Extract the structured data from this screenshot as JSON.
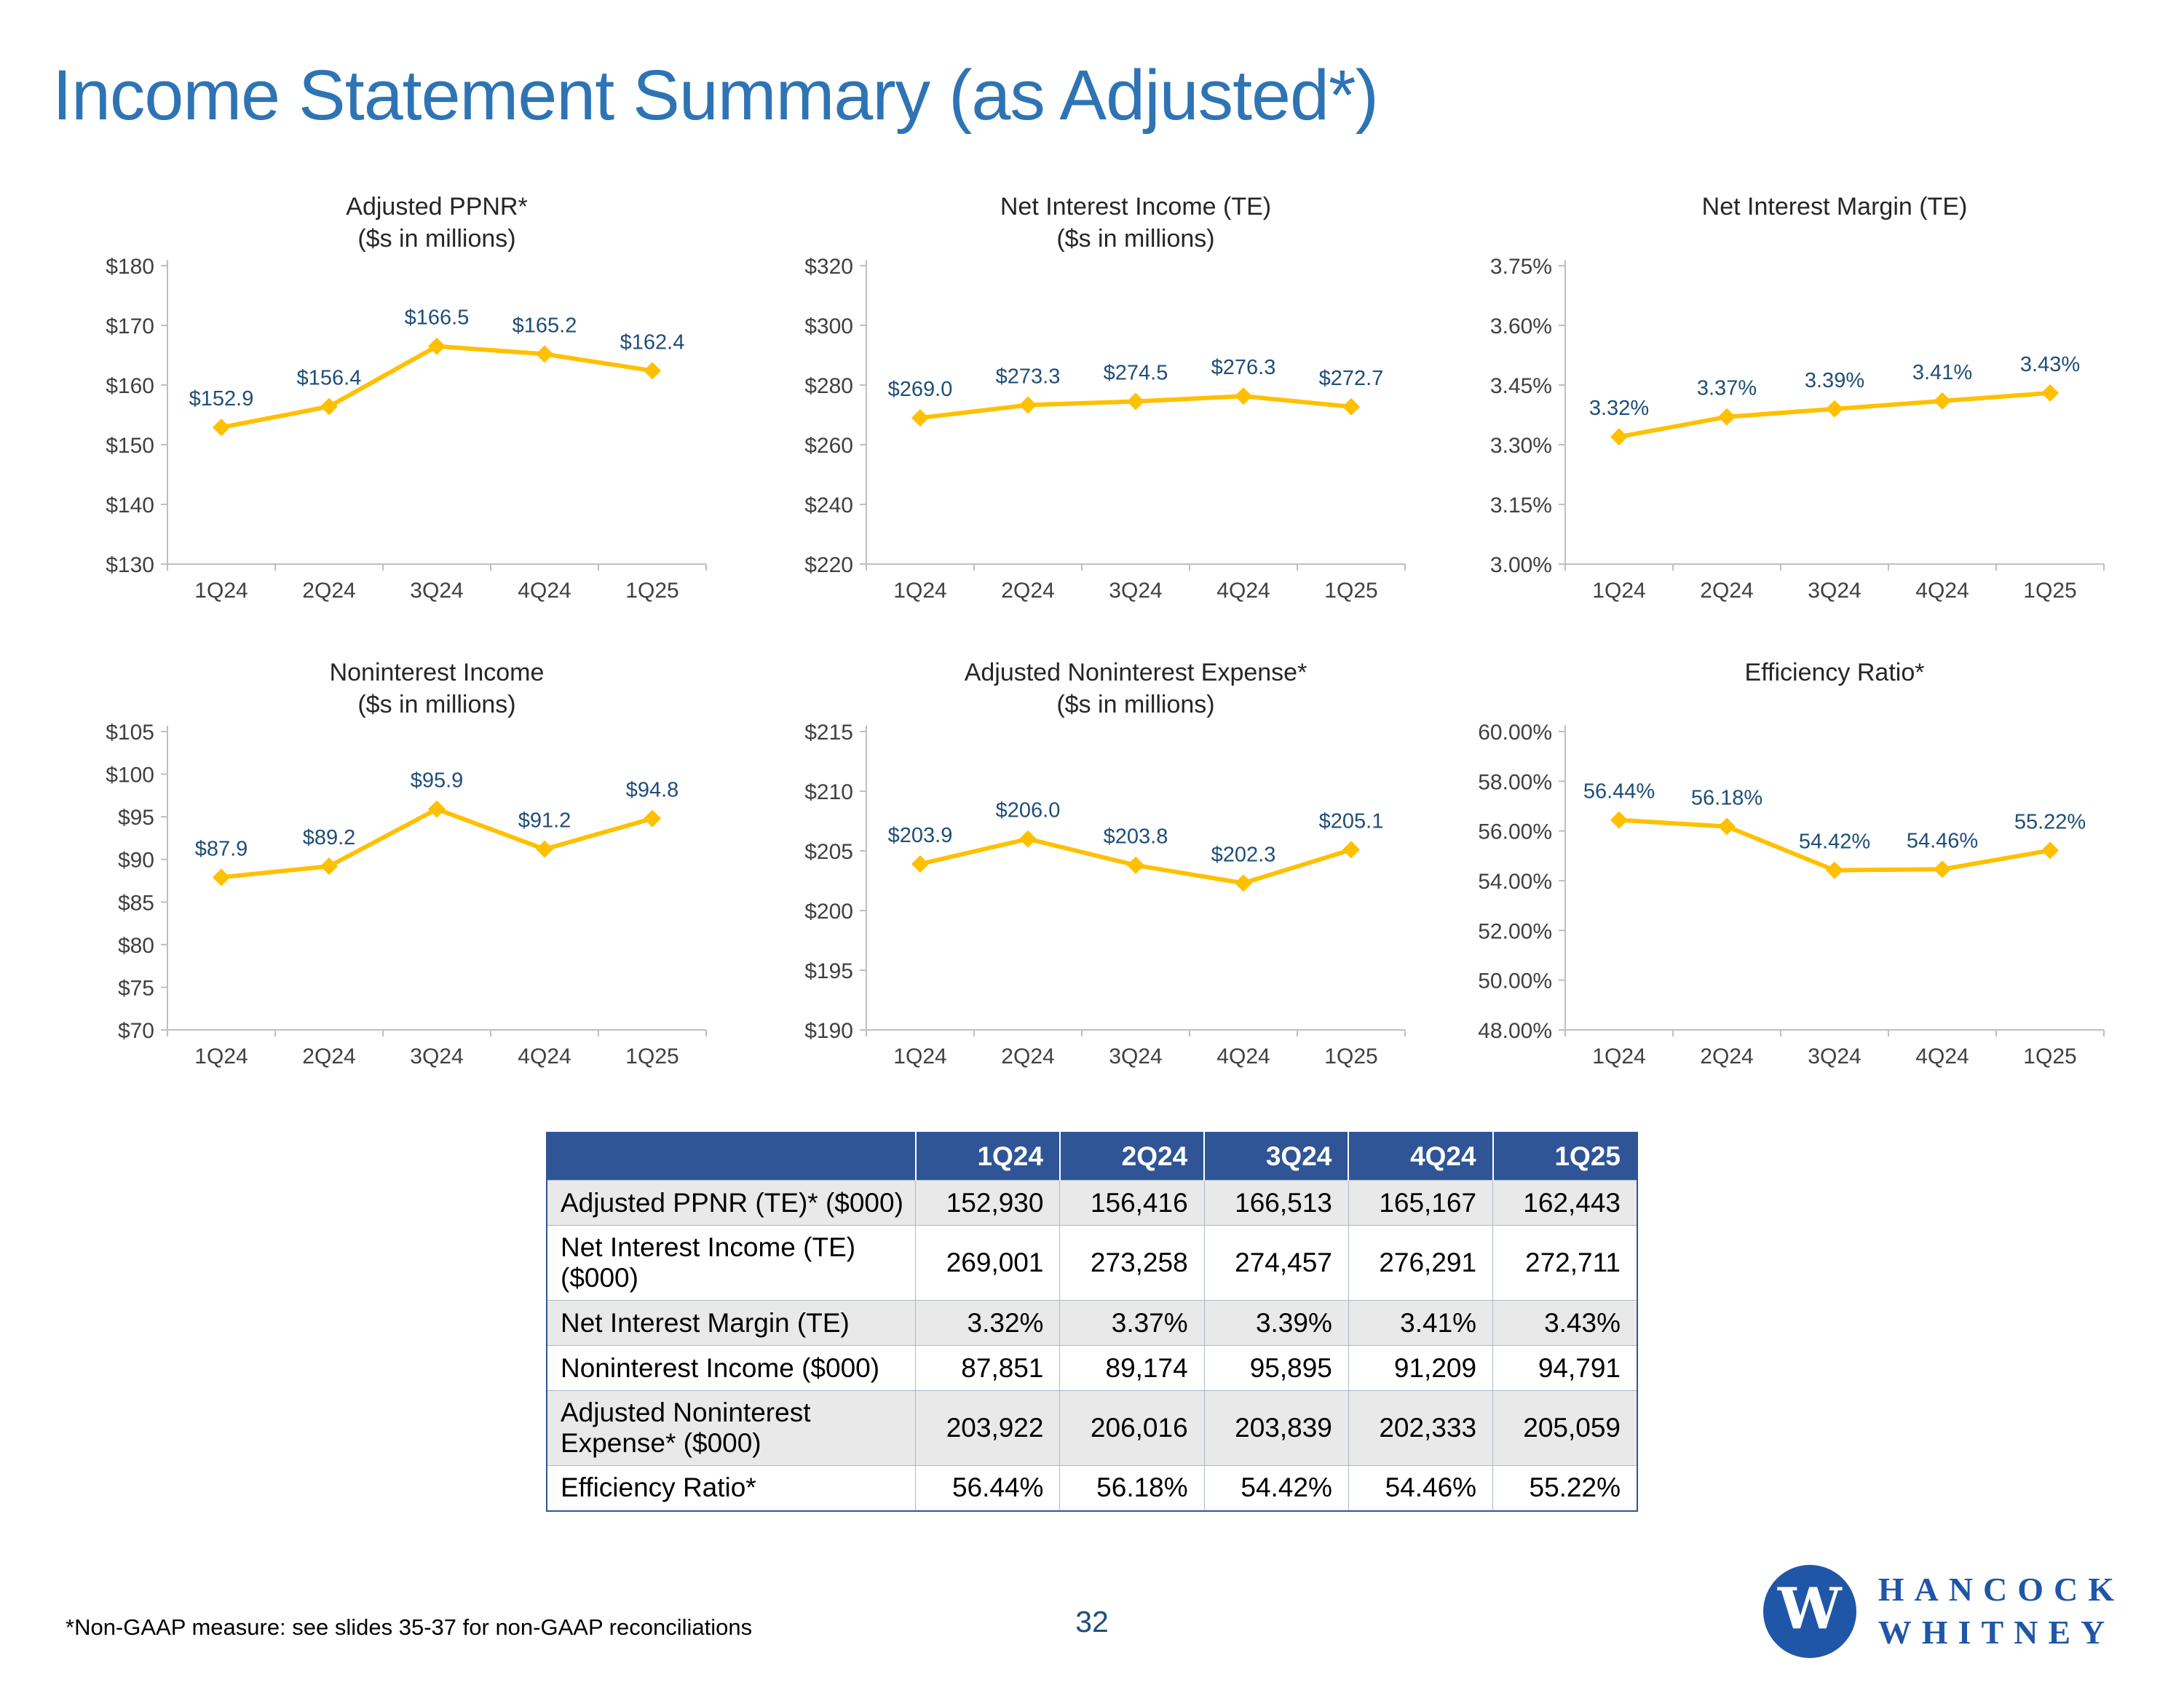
{
  "title": "Income Statement Summary (as Adjusted*)",
  "colors": {
    "line": "#FFC000",
    "point_label": "#1F4E79",
    "title_blue": "#2E74B5",
    "table_header_bg": "#2F5597",
    "axis_line": "#BFBFBF",
    "axis_text": "#404040",
    "chart_title_text": "#262626"
  },
  "chart_data": [
    {
      "type": "line",
      "title": "Adjusted PPNR*",
      "subtitle": "($s in millions)",
      "categories": [
        "1Q24",
        "2Q24",
        "3Q24",
        "4Q24",
        "1Q25"
      ],
      "values": [
        152.9,
        156.4,
        166.5,
        165.2,
        162.4
      ],
      "point_labels": [
        "$152.9",
        "$156.4",
        "$166.5",
        "$165.2",
        "$162.4"
      ],
      "ylim": [
        130,
        180
      ],
      "yticks": [
        {
          "v": 130,
          "label": "$130"
        },
        {
          "v": 140,
          "label": "$140"
        },
        {
          "v": 150,
          "label": "$150"
        },
        {
          "v": 160,
          "label": "$160"
        },
        {
          "v": 170,
          "label": "$170"
        },
        {
          "v": 180,
          "label": "$180"
        }
      ]
    },
    {
      "type": "line",
      "title": "Net Interest Income (TE)",
      "subtitle": "($s in millions)",
      "categories": [
        "1Q24",
        "2Q24",
        "3Q24",
        "4Q24",
        "1Q25"
      ],
      "values": [
        269.0,
        273.3,
        274.5,
        276.3,
        272.7
      ],
      "point_labels": [
        "$269.0",
        "$273.3",
        "$274.5",
        "$276.3",
        "$272.7"
      ],
      "ylim": [
        220,
        320
      ],
      "yticks": [
        {
          "v": 220,
          "label": "$220"
        },
        {
          "v": 240,
          "label": "$240"
        },
        {
          "v": 260,
          "label": "$260"
        },
        {
          "v": 280,
          "label": "$280"
        },
        {
          "v": 300,
          "label": "$300"
        },
        {
          "v": 320,
          "label": "$320"
        }
      ]
    },
    {
      "type": "line",
      "title": "Net Interest Margin (TE)",
      "subtitle": "",
      "categories": [
        "1Q24",
        "2Q24",
        "3Q24",
        "4Q24",
        "1Q25"
      ],
      "values": [
        3.32,
        3.37,
        3.39,
        3.41,
        3.43
      ],
      "point_labels": [
        "3.32%",
        "3.37%",
        "3.39%",
        "3.41%",
        "3.43%"
      ],
      "ylim": [
        3.0,
        3.75
      ],
      "yticks": [
        {
          "v": 3.0,
          "label": "3.00%"
        },
        {
          "v": 3.15,
          "label": "3.15%"
        },
        {
          "v": 3.3,
          "label": "3.30%"
        },
        {
          "v": 3.45,
          "label": "3.45%"
        },
        {
          "v": 3.6,
          "label": "3.60%"
        },
        {
          "v": 3.75,
          "label": "3.75%"
        }
      ]
    },
    {
      "type": "line",
      "title": "Noninterest Income",
      "subtitle": "($s in millions)",
      "categories": [
        "1Q24",
        "2Q24",
        "3Q24",
        "4Q24",
        "1Q25"
      ],
      "values": [
        87.9,
        89.2,
        95.9,
        91.2,
        94.8
      ],
      "point_labels": [
        "$87.9",
        "$89.2",
        "$95.9",
        "$91.2",
        "$94.8"
      ],
      "ylim": [
        70,
        105
      ],
      "yticks": [
        {
          "v": 70,
          "label": "$70"
        },
        {
          "v": 75,
          "label": "$75"
        },
        {
          "v": 80,
          "label": "$80"
        },
        {
          "v": 85,
          "label": "$85"
        },
        {
          "v": 90,
          "label": "$90"
        },
        {
          "v": 95,
          "label": "$95"
        },
        {
          "v": 100,
          "label": "$100"
        },
        {
          "v": 105,
          "label": "$105"
        }
      ]
    },
    {
      "type": "line",
      "title": "Adjusted Noninterest Expense*",
      "subtitle": "($s in millions)",
      "categories": [
        "1Q24",
        "2Q24",
        "3Q24",
        "4Q24",
        "1Q25"
      ],
      "values": [
        203.9,
        206.0,
        203.8,
        202.3,
        205.1
      ],
      "point_labels": [
        "$203.9",
        "$206.0",
        "$203.8",
        "$202.3",
        "$205.1"
      ],
      "ylim": [
        190,
        215
      ],
      "yticks": [
        {
          "v": 190,
          "label": "$190"
        },
        {
          "v": 195,
          "label": "$195"
        },
        {
          "v": 200,
          "label": "$200"
        },
        {
          "v": 205,
          "label": "$205"
        },
        {
          "v": 210,
          "label": "$210"
        },
        {
          "v": 215,
          "label": "$215"
        }
      ]
    },
    {
      "type": "line",
      "title": "Efficiency Ratio*",
      "subtitle": "",
      "categories": [
        "1Q24",
        "2Q24",
        "3Q24",
        "4Q24",
        "1Q25"
      ],
      "values": [
        56.44,
        56.18,
        54.42,
        54.46,
        55.22
      ],
      "point_labels": [
        "56.44%",
        "56.18%",
        "54.42%",
        "54.46%",
        "55.22%"
      ],
      "ylim": [
        48,
        60
      ],
      "yticks": [
        {
          "v": 48,
          "label": "48.00%"
        },
        {
          "v": 50,
          "label": "50.00%"
        },
        {
          "v": 52,
          "label": "52.00%"
        },
        {
          "v": 54,
          "label": "54.00%"
        },
        {
          "v": 56,
          "label": "56.00%"
        },
        {
          "v": 58,
          "label": "58.00%"
        },
        {
          "v": 60,
          "label": "60.00%"
        }
      ]
    }
  ],
  "table": {
    "header": [
      "",
      "1Q24",
      "2Q24",
      "3Q24",
      "4Q24",
      "1Q25"
    ],
    "rows": [
      {
        "label": "Adjusted PPNR (TE)* ($000)",
        "values": [
          "152,930",
          "156,416",
          "166,513",
          "165,167",
          "162,443"
        ]
      },
      {
        "label": "Net Interest Income (TE) ($000)",
        "values": [
          "269,001",
          "273,258",
          "274,457",
          "276,291",
          "272,711"
        ]
      },
      {
        "label": "Net Interest Margin (TE)",
        "values": [
          "3.32%",
          "3.37%",
          "3.39%",
          "3.41%",
          "3.43%"
        ]
      },
      {
        "label": "Noninterest Income ($000)",
        "values": [
          "87,851",
          "89,174",
          "95,895",
          "91,209",
          "94,791"
        ]
      },
      {
        "label": "Adjusted Noninterest Expense* ($000)",
        "values": [
          "203,922",
          "206,016",
          "203,839",
          "202,333",
          "205,059"
        ]
      },
      {
        "label": "Efficiency Ratio*",
        "values": [
          "56.44%",
          "56.18%",
          "54.42%",
          "54.46%",
          "55.22%"
        ]
      }
    ]
  },
  "footer": {
    "footnote": "*Non-GAAP measure: see slides 35-37 for non-GAAP reconciliations",
    "page_number": "32",
    "logo_letter": "W",
    "logo_line1": "HANCOCK",
    "logo_line2": "WHITNEY"
  }
}
